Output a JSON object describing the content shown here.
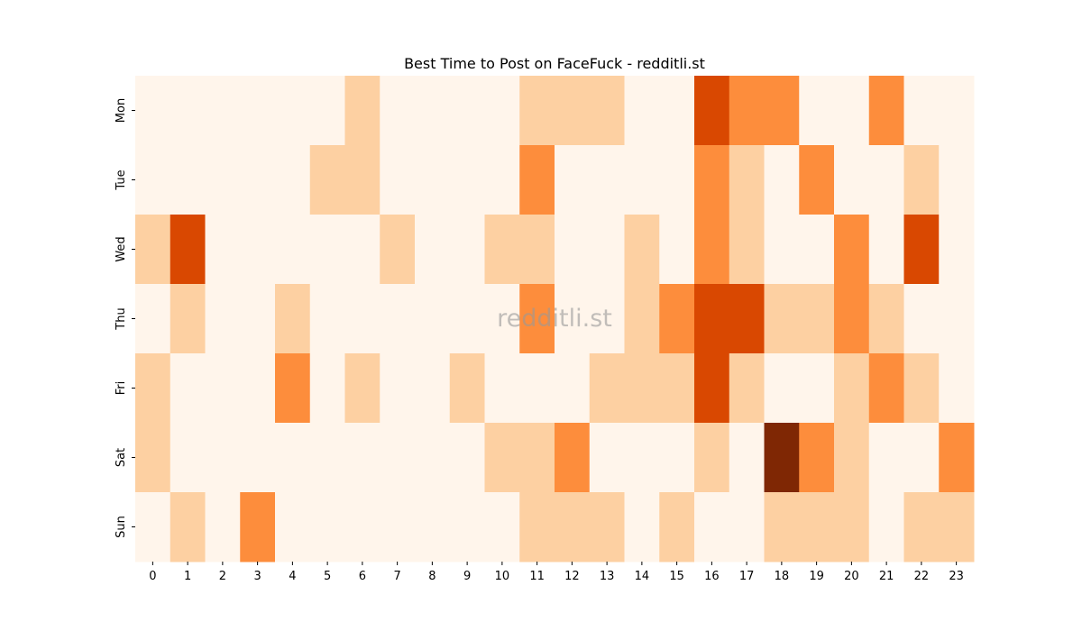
{
  "chart_data": {
    "type": "heatmap",
    "title": "Best Time to Post on FaceFuck - redditli.st",
    "watermark": "redditli.st",
    "x_categories": [
      "0",
      "1",
      "2",
      "3",
      "4",
      "5",
      "6",
      "7",
      "8",
      "9",
      "10",
      "11",
      "12",
      "13",
      "14",
      "15",
      "16",
      "17",
      "18",
      "19",
      "20",
      "21",
      "22",
      "23"
    ],
    "y_categories": [
      "Mon",
      "Tue",
      "Wed",
      "Thu",
      "Fri",
      "Sat",
      "Sun"
    ],
    "colormap": "Oranges",
    "level_colors": [
      "#fff5eb",
      "#fdd0a2",
      "#fd8d3c",
      "#d94801",
      "#7f2704"
    ],
    "colorbar": false,
    "values": [
      [
        0,
        0,
        0,
        0,
        0,
        0,
        1,
        0,
        0,
        0,
        0,
        1,
        1,
        1,
        0,
        0,
        3,
        2,
        2,
        0,
        0,
        2,
        0,
        0
      ],
      [
        0,
        0,
        0,
        0,
        0,
        1,
        1,
        0,
        0,
        0,
        0,
        2,
        0,
        0,
        0,
        0,
        2,
        1,
        0,
        2,
        0,
        0,
        1,
        0
      ],
      [
        1,
        3,
        0,
        0,
        0,
        0,
        0,
        1,
        0,
        0,
        1,
        1,
        0,
        0,
        1,
        0,
        2,
        1,
        0,
        0,
        2,
        0,
        3,
        0
      ],
      [
        0,
        1,
        0,
        0,
        1,
        0,
        0,
        0,
        0,
        0,
        0,
        2,
        0,
        0,
        1,
        2,
        3,
        3,
        1,
        1,
        2,
        1,
        0,
        0
      ],
      [
        1,
        0,
        0,
        0,
        2,
        0,
        1,
        0,
        0,
        1,
        0,
        0,
        0,
        1,
        1,
        1,
        3,
        1,
        0,
        0,
        1,
        2,
        1,
        0
      ],
      [
        1,
        0,
        0,
        0,
        0,
        0,
        0,
        0,
        0,
        0,
        1,
        1,
        2,
        0,
        0,
        0,
        1,
        0,
        4,
        2,
        1,
        0,
        0,
        2
      ],
      [
        0,
        1,
        0,
        2,
        0,
        0,
        0,
        0,
        0,
        0,
        0,
        1,
        1,
        1,
        0,
        1,
        0,
        0,
        1,
        1,
        1,
        0,
        1,
        1
      ]
    ]
  }
}
